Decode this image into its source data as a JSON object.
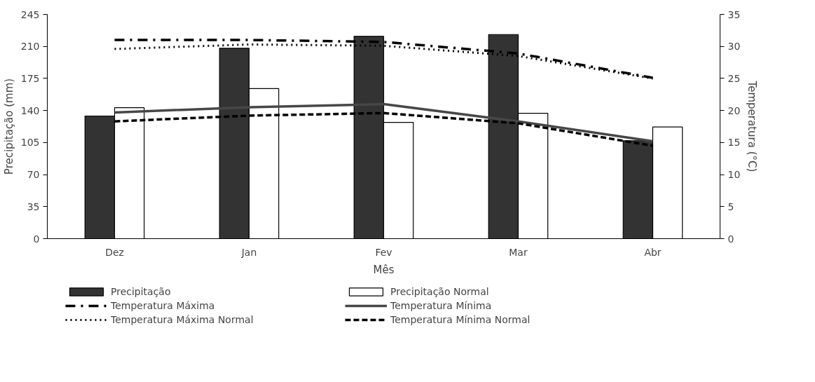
{
  "chart_data": {
    "type": "bar",
    "xlabel": "Mês",
    "ylabel": "Precipitação (mm)",
    "y2label": "Temperatura (°C)",
    "categories": [
      "Dez",
      "Jan",
      "Fev",
      "Mar",
      "Abr"
    ],
    "series": [
      {
        "name": "Precipitação",
        "color": "#333333",
        "values": [
          134,
          208,
          221,
          223,
          107
        ]
      },
      {
        "name": "Precipitação Normal",
        "color": "#ffffff",
        "values": [
          143,
          164,
          127,
          137,
          122
        ]
      },
      {
        "name": "Temperatura Máxima",
        "type": "line",
        "axis": "y2",
        "line_style": "dashdot",
        "color": "#000000",
        "values": [
          31.0,
          31.0,
          30.7,
          28.9,
          25.1
        ]
      },
      {
        "name": "Temperatura Mínima",
        "type": "line",
        "axis": "y2",
        "line_style": "solid",
        "color": "#474747",
        "values": [
          19.7,
          20.5,
          21.0,
          18.3,
          15.2
        ]
      },
      {
        "name": "Temperatura Máxima Normal",
        "type": "line",
        "axis": "y2",
        "line_style": "dotted",
        "color": "#000000",
        "values": [
          29.6,
          30.3,
          30.1,
          28.5,
          25.0
        ]
      },
      {
        "name": "Temperatura Mínima Normal",
        "type": "line",
        "axis": "y2",
        "line_style": "dashed",
        "color": "#000000",
        "values": [
          18.3,
          19.2,
          19.6,
          18.0,
          14.5
        ]
      }
    ],
    "ylim": [
      0,
      245
    ],
    "yticks": [
      0,
      35,
      70,
      105,
      140,
      175,
      210,
      245
    ],
    "y2lim": [
      0,
      35
    ],
    "y2ticks": [
      0,
      5,
      10,
      15,
      20,
      25,
      30,
      35
    ],
    "grid": false,
    "legend": "bottom"
  }
}
